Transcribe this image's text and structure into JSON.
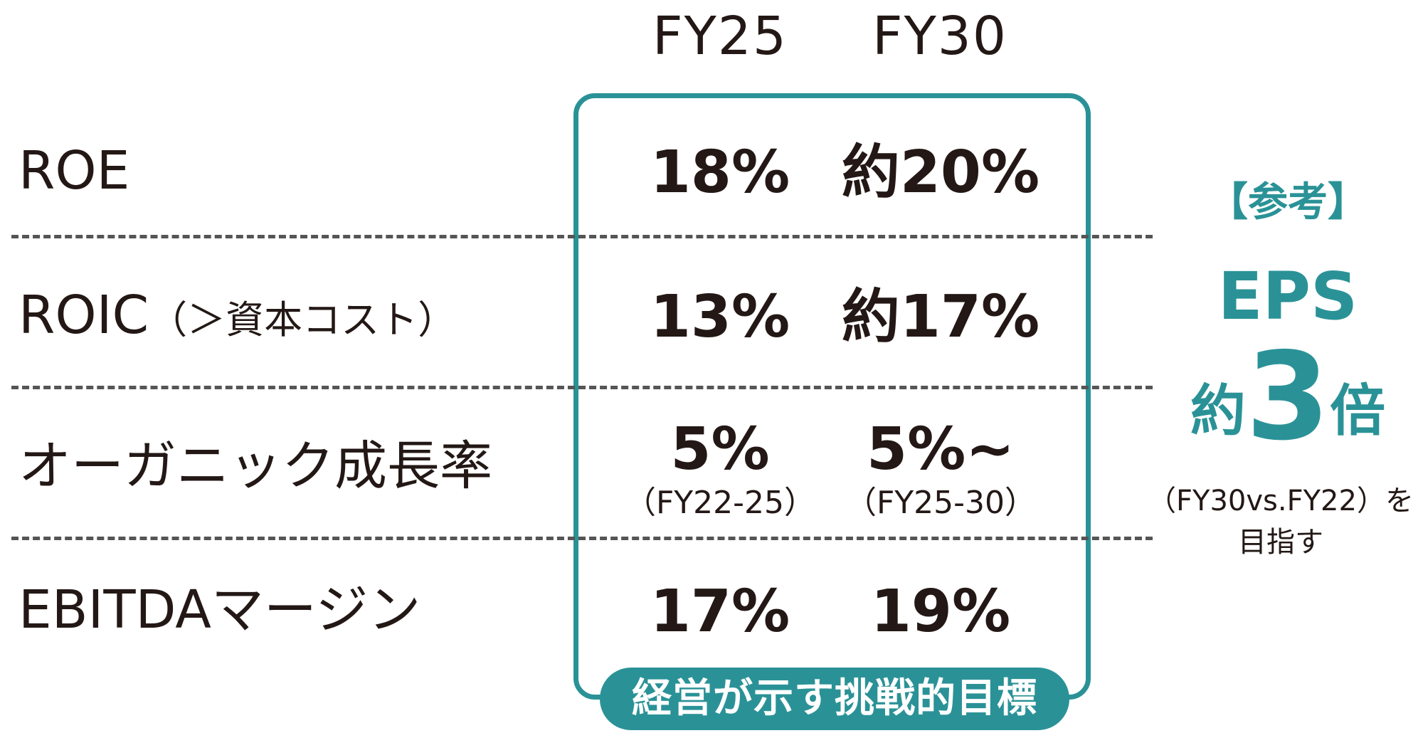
{
  "columns": {
    "fy25": "FY25",
    "fy30": "FY30"
  },
  "rows": [
    {
      "label": "ROE",
      "note": "",
      "fy25": "18%",
      "fy30": "約20%",
      "fy25_sub": "",
      "fy30_sub": ""
    },
    {
      "label": "ROIC",
      "note": "（＞資本コスト）",
      "fy25": "13%",
      "fy30": "約17%",
      "fy25_sub": "",
      "fy30_sub": ""
    },
    {
      "label": "オーガニック成長率",
      "note": "",
      "fy25": "5%",
      "fy30": "5%~",
      "fy25_sub": "（FY22-25）",
      "fy30_sub": "（FY25-30）"
    },
    {
      "label": "EBITDAマージン",
      "note": "",
      "fy25": "17%",
      "fy30": "19%",
      "fy25_sub": "",
      "fy30_sub": ""
    }
  ],
  "box_tag": "経営が示す挑戦的目標",
  "reference": {
    "bracket_label": "【参考】",
    "metric": "EPS",
    "approx": "約",
    "multiple": "3",
    "times": "倍",
    "comparison": "（FY30vs.FY22）を",
    "target": "目指す"
  },
  "colors": {
    "accent": "#2a9297",
    "text": "#231815",
    "separator": "#555555"
  }
}
